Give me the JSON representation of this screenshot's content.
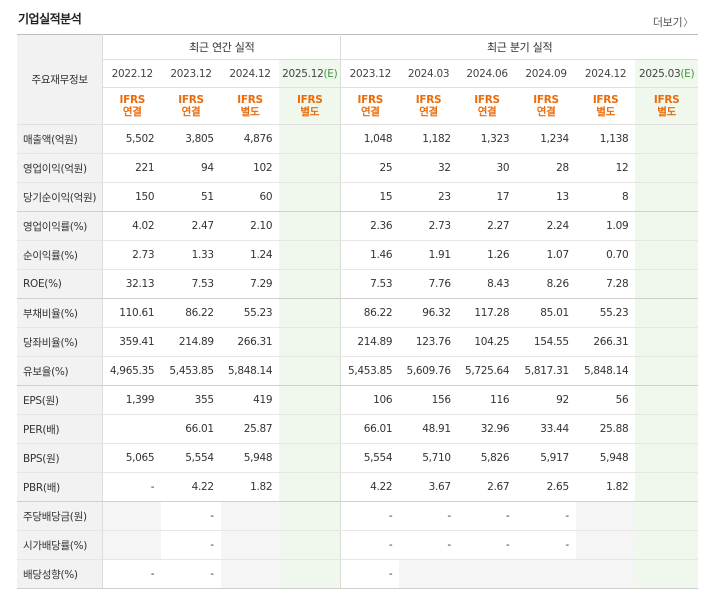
{
  "header": {
    "title": "기업실적분석",
    "more": "더보기",
    "more_icon": "chevron-right-icon"
  },
  "table": {
    "corner_label": "주요재무정보",
    "annual_group": "최근 연간 실적",
    "quarter_group": "최근 분기 실적",
    "annual_periods": [
      {
        "period": "2022.12",
        "estimate": false,
        "std1": "IFRS",
        "std2": "연결"
      },
      {
        "period": "2023.12",
        "estimate": false,
        "std1": "IFRS",
        "std2": "연결"
      },
      {
        "period": "2024.12",
        "estimate": false,
        "std1": "IFRS",
        "std2": "별도"
      },
      {
        "period": "2025.12",
        "estimate": true,
        "est_mark": "(E)",
        "std1": "IFRS",
        "std2": "별도"
      }
    ],
    "quarter_periods": [
      {
        "period": "2023.12",
        "estimate": false,
        "std1": "IFRS",
        "std2": "연결"
      },
      {
        "period": "2024.03",
        "estimate": false,
        "std1": "IFRS",
        "std2": "연결"
      },
      {
        "period": "2024.06",
        "estimate": false,
        "std1": "IFRS",
        "std2": "연결"
      },
      {
        "period": "2024.09",
        "estimate": false,
        "std1": "IFRS",
        "std2": "연결"
      },
      {
        "period": "2024.12",
        "estimate": false,
        "std1": "IFRS",
        "std2": "별도"
      },
      {
        "period": "2025.03",
        "estimate": true,
        "est_mark": "(E)",
        "std1": "IFRS",
        "std2": "별도"
      }
    ],
    "rows": [
      {
        "label": "매출액(억원)",
        "annual": [
          "5,502",
          "3,805",
          "4,876",
          ""
        ],
        "quarter": [
          "1,048",
          "1,182",
          "1,323",
          "1,234",
          "1,138",
          ""
        ]
      },
      {
        "label": "영업이익(억원)",
        "annual": [
          "221",
          "94",
          "102",
          ""
        ],
        "quarter": [
          "25",
          "32",
          "30",
          "28",
          "12",
          ""
        ]
      },
      {
        "label": "당기순이익(억원)",
        "annual": [
          "150",
          "51",
          "60",
          ""
        ],
        "quarter": [
          "15",
          "23",
          "17",
          "13",
          "8",
          ""
        ]
      },
      {
        "label": "영업이익률(%)",
        "annual": [
          "4.02",
          "2.47",
          "2.10",
          ""
        ],
        "quarter": [
          "2.36",
          "2.73",
          "2.27",
          "2.24",
          "1.09",
          ""
        ]
      },
      {
        "label": "순이익률(%)",
        "annual": [
          "2.73",
          "1.33",
          "1.24",
          ""
        ],
        "quarter": [
          "1.46",
          "1.91",
          "1.26",
          "1.07",
          "0.70",
          ""
        ]
      },
      {
        "label": "ROE(%)",
        "annual": [
          "32.13",
          "7.53",
          "7.29",
          ""
        ],
        "quarter": [
          "7.53",
          "7.76",
          "8.43",
          "8.26",
          "7.28",
          ""
        ]
      },
      {
        "label": "부채비율(%)",
        "annual": [
          "110.61",
          "86.22",
          "55.23",
          ""
        ],
        "quarter": [
          "86.22",
          "96.32",
          "117.28",
          "85.01",
          "55.23",
          ""
        ]
      },
      {
        "label": "당좌비율(%)",
        "annual": [
          "359.41",
          "214.89",
          "266.31",
          ""
        ],
        "quarter": [
          "214.89",
          "123.76",
          "104.25",
          "154.55",
          "266.31",
          ""
        ]
      },
      {
        "label": "유보율(%)",
        "annual": [
          "4,965.35",
          "5,453.85",
          "5,848.14",
          ""
        ],
        "quarter": [
          "5,453.85",
          "5,609.76",
          "5,725.64",
          "5,817.31",
          "5,848.14",
          ""
        ]
      },
      {
        "label": "EPS(원)",
        "annual": [
          "1,399",
          "355",
          "419",
          ""
        ],
        "quarter": [
          "106",
          "156",
          "116",
          "92",
          "56",
          ""
        ]
      },
      {
        "label": "PER(배)",
        "annual": [
          "",
          "66.01",
          "25.87",
          ""
        ],
        "quarter": [
          "66.01",
          "48.91",
          "32.96",
          "33.44",
          "25.88",
          ""
        ]
      },
      {
        "label": "BPS(원)",
        "annual": [
          "5,065",
          "5,554",
          "5,948",
          ""
        ],
        "quarter": [
          "5,554",
          "5,710",
          "5,826",
          "5,917",
          "5,948",
          ""
        ]
      },
      {
        "label": "PBR(배)",
        "annual": [
          "-",
          "4.22",
          "1.82",
          ""
        ],
        "quarter": [
          "4.22",
          "3.67",
          "2.67",
          "2.65",
          "1.82",
          ""
        ]
      },
      {
        "label": "주당배당금(원)",
        "annual": [
          "",
          "-",
          "",
          ""
        ],
        "quarter": [
          "-",
          "-",
          "-",
          "-",
          "",
          ""
        ]
      },
      {
        "label": "시가배당률(%)",
        "annual": [
          "",
          "-",
          "",
          ""
        ],
        "quarter": [
          "-",
          "-",
          "-",
          "-",
          "",
          ""
        ]
      },
      {
        "label": "배당성향(%)",
        "annual": [
          "-",
          "-",
          "",
          ""
        ],
        "quarter": [
          "-",
          "",
          "",
          "",
          "",
          ""
        ]
      }
    ],
    "group_breaks_after": [
      2,
      5,
      8,
      12
    ],
    "na_cells": {
      "13": {
        "annual": [
          0,
          2
        ],
        "quarter": [
          4
        ]
      },
      "14": {
        "annual": [
          0,
          2
        ],
        "quarter": [
          4
        ]
      },
      "15": {
        "annual": [
          2
        ],
        "quarter": [
          1,
          2,
          3,
          4
        ]
      }
    }
  },
  "colors": {
    "standard_text": "#ea6c0c",
    "estimate_text": "#3a9a3a",
    "estimate_bg": "#f0f8ee",
    "header_bg": "#f2f2f2"
  }
}
